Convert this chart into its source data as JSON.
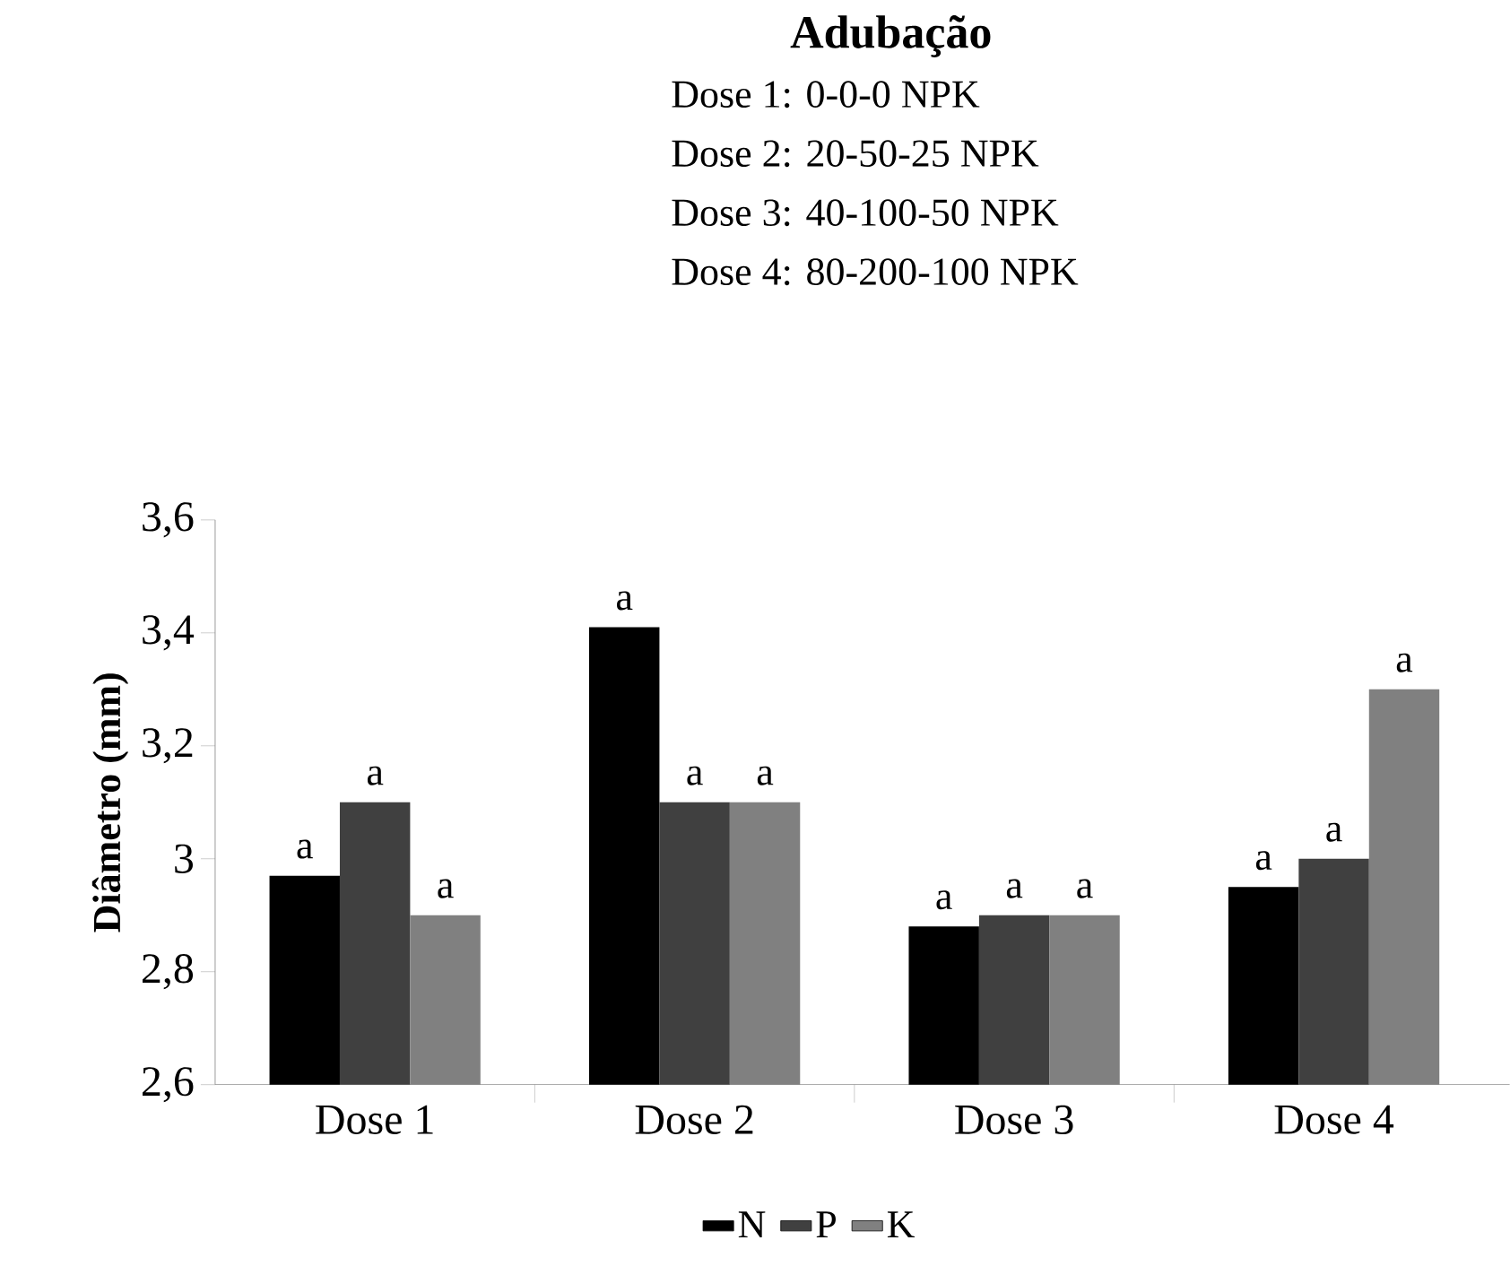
{
  "chart_data": {
    "type": "bar",
    "title": "Adubação",
    "annotations": [
      "Dose 1: 0-0-0  NPK",
      "Dose 2: 20-50-25  NPK",
      "Dose 3: 40-100-50  NPK",
      "Dose 4: 80-200-100  NPK"
    ],
    "ylabel": "Diâmetro (mm)",
    "categories": [
      "Dose 1",
      "Dose 2",
      "Dose 3",
      "Dose 4"
    ],
    "series": [
      {
        "name": "N",
        "color": "#000000",
        "values": [
          2.97,
          3.41,
          2.88,
          2.95
        ],
        "value_labels": [
          "a",
          "a",
          "a",
          "a"
        ]
      },
      {
        "name": "P",
        "color": "#404040",
        "values": [
          3.1,
          3.1,
          2.9,
          3.0
        ],
        "value_labels": [
          "a",
          "a",
          "a",
          "a"
        ]
      },
      {
        "name": "K",
        "color": "#808080",
        "values": [
          2.9,
          3.1,
          2.9,
          3.3
        ],
        "value_labels": [
          "a",
          "a",
          "a",
          "a"
        ]
      }
    ],
    "ylim": [
      2.6,
      3.6
    ],
    "yticks": [
      {
        "value": 2.6,
        "label": "2,6"
      },
      {
        "value": 2.8,
        "label": "2,8"
      },
      3,
      {
        "value": 3.2,
        "label": "3,2"
      },
      {
        "value": 3.4,
        "label": "3,4"
      },
      {
        "value": 3.6,
        "label": "3,6"
      }
    ],
    "legend": "bottom"
  }
}
